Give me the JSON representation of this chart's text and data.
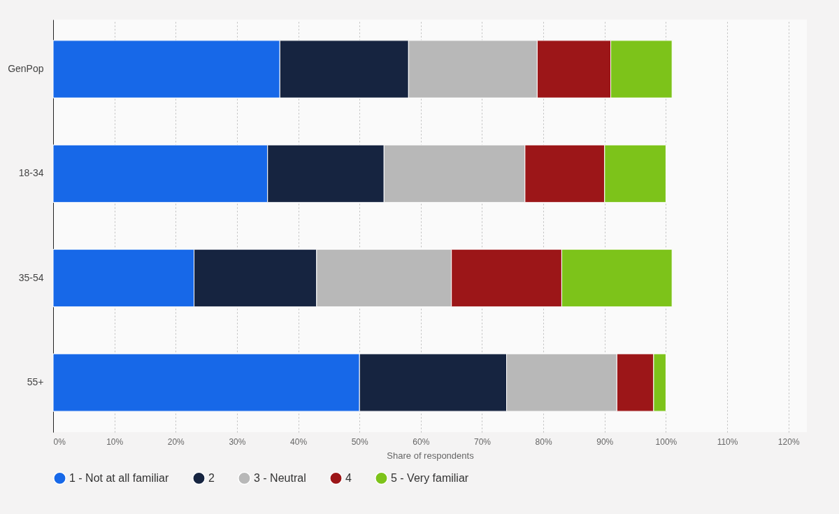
{
  "chart_data": {
    "type": "bar",
    "orientation": "horizontal",
    "stacked": true,
    "xlabel": "Share of respondents",
    "categories": [
      "GenPop",
      "18-34",
      "35-54",
      "55+"
    ],
    "series": [
      {
        "name": "1 - Not at all familiar",
        "color": "#1768e8",
        "values": [
          37,
          35,
          23,
          50
        ]
      },
      {
        "name": "2",
        "color": "#162440",
        "values": [
          21,
          19,
          20,
          24
        ]
      },
      {
        "name": "3 - Neutral",
        "color": "#b8b8b8",
        "values": [
          21,
          23,
          22,
          18
        ]
      },
      {
        "name": "4",
        "color": "#9c1618",
        "values": [
          12,
          13,
          18,
          6
        ]
      },
      {
        "name": "5 - Very familiar",
        "color": "#7dc31a",
        "values": [
          10,
          10,
          18,
          2
        ]
      }
    ],
    "xlim": [
      0,
      123
    ],
    "xticks": [
      {
        "value": 0,
        "label": "0%"
      },
      {
        "value": 10,
        "label": "10%"
      },
      {
        "value": 20,
        "label": "20%"
      },
      {
        "value": 30,
        "label": "30%"
      },
      {
        "value": 40,
        "label": "40%"
      },
      {
        "value": 50,
        "label": "50%"
      },
      {
        "value": 60,
        "label": "60%"
      },
      {
        "value": 70,
        "label": "70%"
      },
      {
        "value": 80,
        "label": "80%"
      },
      {
        "value": 90,
        "label": "90%"
      },
      {
        "value": 100,
        "label": "100%"
      },
      {
        "value": 110,
        "label": "110%"
      },
      {
        "value": 120,
        "label": "120%"
      }
    ],
    "grid": "x",
    "legend": "bottom"
  }
}
